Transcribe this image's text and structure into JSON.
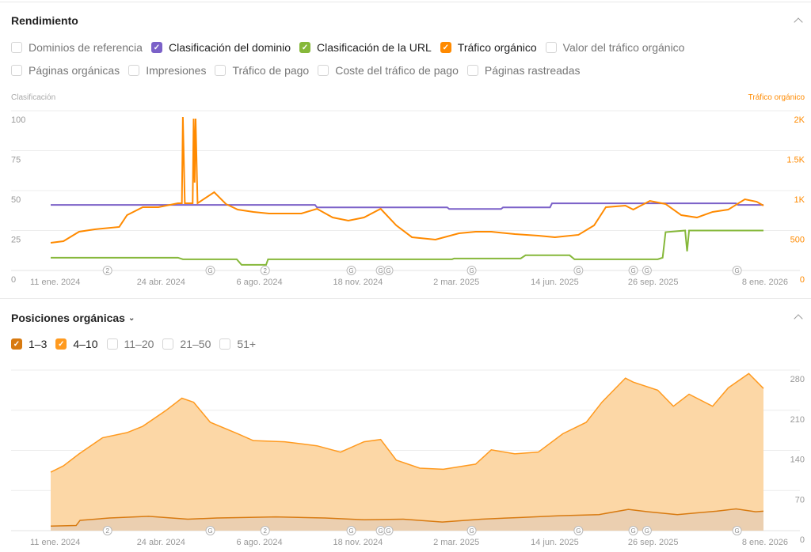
{
  "performance": {
    "title": "Rendimiento",
    "checkboxes_row1": [
      {
        "label": "Dominios de referencia",
        "checked": false,
        "color": ""
      },
      {
        "label": "Clasificación del dominio",
        "checked": true,
        "color": "#7b61c8"
      },
      {
        "label": "Clasificación de la URL",
        "checked": true,
        "color": "#86b83a"
      },
      {
        "label": "Tráfico orgánico",
        "checked": true,
        "color": "#ff8a00"
      },
      {
        "label": "Valor del tráfico orgánico",
        "checked": false,
        "color": ""
      }
    ],
    "checkboxes_row2": [
      {
        "label": "Páginas orgánicas",
        "checked": false,
        "color": ""
      },
      {
        "label": "Impresiones",
        "checked": false,
        "color": ""
      },
      {
        "label": "Tráfico de pago",
        "checked": false,
        "color": ""
      },
      {
        "label": "Coste del tráfico de pago",
        "checked": false,
        "color": ""
      },
      {
        "label": "Páginas rastreadas",
        "checked": false,
        "color": ""
      }
    ],
    "left_axis_title": "Clasificación",
    "right_axis_title": "Tráfico orgánico"
  },
  "positions": {
    "title": "Posiciones orgánicas",
    "checkboxes": [
      {
        "label": "1–3",
        "checked": true,
        "color": "#d87a10"
      },
      {
        "label": "4–10",
        "checked": true,
        "color": "#ff9a1f"
      },
      {
        "label": "11–20",
        "checked": false,
        "color": ""
      },
      {
        "label": "21–50",
        "checked": false,
        "color": ""
      },
      {
        "label": "51+",
        "checked": false,
        "color": ""
      }
    ]
  },
  "chart_data": [
    {
      "type": "line",
      "title": "Rendimiento",
      "x_unit": "days since 11 ene. 2024",
      "xlim": [
        0,
        728
      ],
      "x_tick_labels": [
        "11 ene. 2024",
        "24 abr. 2024",
        "6 ago. 2024",
        "18 nov. 2024",
        "2 mar. 2025",
        "14 jun. 2025",
        "26 sep. 2025",
        "8 ene. 2026"
      ],
      "y_left": {
        "label": "Clasificación",
        "ticks": [
          "0",
          "25",
          "50",
          "75",
          "100"
        ],
        "ylim": [
          0,
          100
        ]
      },
      "y_right": {
        "label": "Tráfico orgánico",
        "ticks": [
          "0",
          "500",
          "1K",
          "1.5K",
          "2K"
        ],
        "ylim": [
          0,
          2000
        ]
      },
      "series": [
        {
          "name": "Clasificación del dominio",
          "axis": "left",
          "color": "#7b61c8",
          "points": [
            [
              0,
              41
            ],
            [
              270,
              41
            ],
            [
              272,
              39.5
            ],
            [
              405,
              39.5
            ],
            [
              407,
              38.5
            ],
            [
              460,
              38.5
            ],
            [
              462,
              39.5
            ],
            [
              510,
              39.5
            ],
            [
              512,
              42
            ],
            [
              700,
              42
            ],
            [
              702,
              41
            ],
            [
              728,
              41
            ]
          ]
        },
        {
          "name": "Clasificación de la URL",
          "axis": "left",
          "color": "#86b83a",
          "points": [
            [
              0,
              8
            ],
            [
              130,
              8
            ],
            [
              135,
              7
            ],
            [
              190,
              7
            ],
            [
              195,
              3.5
            ],
            [
              220,
              3.5
            ],
            [
              222,
              7
            ],
            [
              410,
              7
            ],
            [
              412,
              7.5
            ],
            [
              480,
              7.5
            ],
            [
              485,
              9.5
            ],
            [
              530,
              9.5
            ],
            [
              535,
              7
            ],
            [
              620,
              7
            ],
            [
              625,
              8
            ],
            [
              628,
              24
            ],
            [
              648,
              25
            ],
            [
              650,
              12
            ],
            [
              652,
              25
            ],
            [
              728,
              25
            ]
          ]
        },
        {
          "name": "Tráfico orgánico",
          "axis": "right",
          "color": "#ff8a00",
          "points": [
            [
              0,
              347
            ],
            [
              13,
              366
            ],
            [
              29,
              485
            ],
            [
              45,
              515
            ],
            [
              70,
              545
            ],
            [
              78,
              693
            ],
            [
              94,
              792
            ],
            [
              110,
              792
            ],
            [
              130,
              842
            ],
            [
              134,
              842
            ],
            [
              135,
              1921
            ],
            [
              137,
              842
            ],
            [
              145,
              842
            ],
            [
              146,
              1901
            ],
            [
              147,
              1100
            ],
            [
              148,
              1901
            ],
            [
              150,
              842
            ],
            [
              167,
              980
            ],
            [
              179,
              832
            ],
            [
              191,
              762
            ],
            [
              207,
              733
            ],
            [
              223,
              713
            ],
            [
              239,
              713
            ],
            [
              256,
              713
            ],
            [
              272,
              772
            ],
            [
              288,
              663
            ],
            [
              304,
              624
            ],
            [
              320,
              663
            ],
            [
              337,
              772
            ],
            [
              353,
              564
            ],
            [
              369,
              416
            ],
            [
              393,
              386
            ],
            [
              417,
              465
            ],
            [
              434,
              485
            ],
            [
              450,
              485
            ],
            [
              474,
              455
            ],
            [
              498,
              436
            ],
            [
              515,
              416
            ],
            [
              539,
              446
            ],
            [
              555,
              564
            ],
            [
              567,
              792
            ],
            [
              587,
              812
            ],
            [
              595,
              762
            ],
            [
              612,
              871
            ],
            [
              628,
              832
            ],
            [
              644,
              693
            ],
            [
              660,
              663
            ],
            [
              676,
              733
            ],
            [
              692,
              762
            ],
            [
              709,
              891
            ],
            [
              721,
              861
            ],
            [
              728,
              812
            ]
          ]
        }
      ],
      "annotations": [
        {
          "day": 58,
          "label": "2"
        },
        {
          "day": 163,
          "label": "G"
        },
        {
          "day": 219,
          "label": "2"
        },
        {
          "day": 307,
          "label": "G"
        },
        {
          "day": 337,
          "label": "G"
        },
        {
          "day": 345,
          "label": "G"
        },
        {
          "day": 430,
          "label": "G"
        },
        {
          "day": 539,
          "label": "G"
        },
        {
          "day": 595,
          "label": "G"
        },
        {
          "day": 609,
          "label": "G"
        },
        {
          "day": 701,
          "label": "G"
        }
      ]
    },
    {
      "type": "area",
      "title": "Posiciones orgánicas",
      "xlim": [
        0,
        728
      ],
      "x_tick_labels": [
        "11 ene. 2024",
        "24 abr. 2024",
        "6 ago. 2024",
        "18 nov. 2024",
        "2 mar. 2025",
        "14 jun. 2025",
        "26 sep. 2025",
        "8 ene. 2026"
      ],
      "y_right": {
        "ticks": [
          "0",
          "70",
          "140",
          "210",
          "280"
        ],
        "ylim": [
          0,
          280
        ]
      },
      "series": [
        {
          "name": "4–10 (stacked total)",
          "color": "#ff9a1f",
          "fill": "#fcd7a6",
          "points": [
            [
              0,
              102
            ],
            [
              13,
              113
            ],
            [
              29,
              134
            ],
            [
              53,
              162
            ],
            [
              78,
              171
            ],
            [
              94,
              182
            ],
            [
              118,
              210
            ],
            [
              134,
              231
            ],
            [
              146,
              224
            ],
            [
              163,
              189
            ],
            [
              191,
              169
            ],
            [
              207,
              157
            ],
            [
              239,
              155
            ],
            [
              272,
              148
            ],
            [
              296,
              137
            ],
            [
              320,
              155
            ],
            [
              337,
              159
            ],
            [
              353,
              123
            ],
            [
              377,
              109
            ],
            [
              401,
              107
            ],
            [
              434,
              116
            ],
            [
              450,
              141
            ],
            [
              474,
              134
            ],
            [
              498,
              137
            ],
            [
              523,
              169
            ],
            [
              547,
              189
            ],
            [
              563,
              224
            ],
            [
              587,
              266
            ],
            [
              595,
              259
            ],
            [
              620,
              245
            ],
            [
              636,
              217
            ],
            [
              652,
              238
            ],
            [
              676,
              217
            ],
            [
              692,
              249
            ],
            [
              713,
              274
            ],
            [
              728,
              248
            ]
          ]
        },
        {
          "name": "1–3",
          "color": "#d87a10",
          "fill": "#ebcfb0",
          "points": [
            [
              0,
              8
            ],
            [
              26,
              9
            ],
            [
              30,
              18
            ],
            [
              60,
              22
            ],
            [
              100,
              25
            ],
            [
              140,
              20
            ],
            [
              170,
              22
            ],
            [
              230,
              24
            ],
            [
              280,
              22
            ],
            [
              320,
              19
            ],
            [
              360,
              20
            ],
            [
              400,
              15
            ],
            [
              440,
              20
            ],
            [
              480,
              23
            ],
            [
              520,
              26
            ],
            [
              560,
              28
            ],
            [
              590,
              37
            ],
            [
              610,
              33
            ],
            [
              640,
              28
            ],
            [
              680,
              34
            ],
            [
              700,
              38
            ],
            [
              720,
              33
            ],
            [
              728,
              34
            ]
          ]
        }
      ],
      "annotations": [
        {
          "day": 58,
          "label": "2"
        },
        {
          "day": 163,
          "label": "G"
        },
        {
          "day": 219,
          "label": "2"
        },
        {
          "day": 307,
          "label": "G"
        },
        {
          "day": 337,
          "label": "G"
        },
        {
          "day": 345,
          "label": "G"
        },
        {
          "day": 430,
          "label": "G"
        },
        {
          "day": 539,
          "label": "G"
        },
        {
          "day": 595,
          "label": "G"
        },
        {
          "day": 609,
          "label": "G"
        },
        {
          "day": 701,
          "label": "G"
        }
      ]
    }
  ]
}
